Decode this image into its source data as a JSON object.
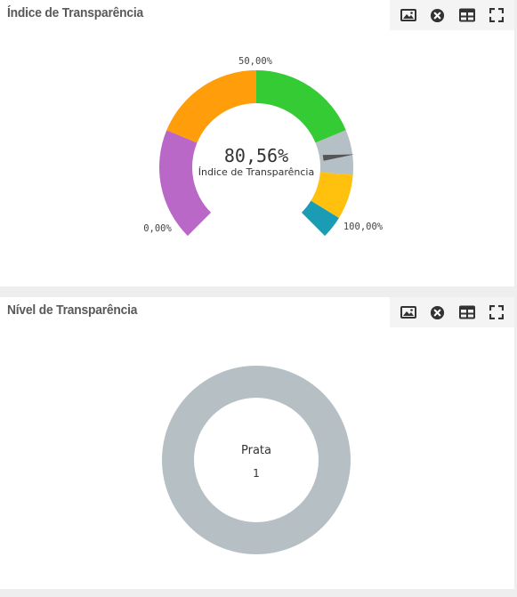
{
  "panels": [
    {
      "title": "Índice de Transparência",
      "toolbar": [
        {
          "icon": "image-icon",
          "action": "export-image"
        },
        {
          "icon": "close-circle-icon",
          "action": "close"
        },
        {
          "icon": "table-icon",
          "action": "view-table"
        },
        {
          "icon": "fullscreen-icon",
          "action": "fullscreen"
        }
      ]
    },
    {
      "title": "Nível de Transparência",
      "toolbar": [
        {
          "icon": "image-icon",
          "action": "export-image"
        },
        {
          "icon": "close-circle-icon",
          "action": "close"
        },
        {
          "icon": "table-icon",
          "action": "view-table"
        },
        {
          "icon": "fullscreen-icon",
          "action": "fullscreen"
        }
      ]
    }
  ],
  "chart_data": [
    {
      "type": "gauge",
      "value": 80.56,
      "value_label": "80,56%",
      "caption": "Índice de Transparência",
      "min": 0,
      "max": 100,
      "min_label": "0,00%",
      "mid_label": "50,00%",
      "max_label": "100,00%",
      "bands": [
        {
          "from": 0,
          "to": 25,
          "color": "#b968c7"
        },
        {
          "from": 25,
          "to": 50,
          "color": "#ff9d0b"
        },
        {
          "from": 50,
          "to": 75,
          "color": "#34cb35"
        },
        {
          "from": 75,
          "to": 85,
          "color": "#b5bfc6"
        },
        {
          "from": 85,
          "to": 95,
          "color": "#ffc10e"
        },
        {
          "from": 95,
          "to": 100,
          "color": "#1a9cb5"
        }
      ],
      "needle_color": "#555555"
    },
    {
      "type": "donut",
      "center_label": "Prata",
      "center_value": "1",
      "slices": [
        {
          "label": "Prata",
          "value": 1,
          "color": "#b5bfc4"
        }
      ]
    }
  ]
}
